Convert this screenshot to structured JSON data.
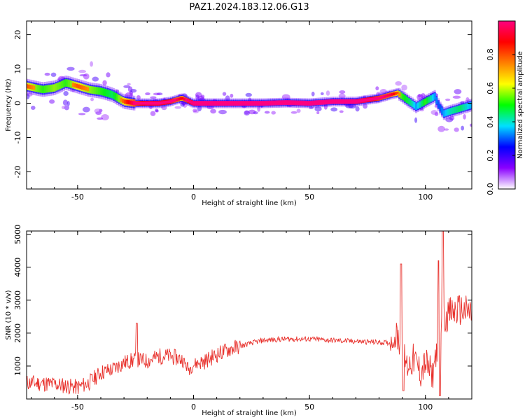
{
  "title": "PAZ1.2024.183.12.06.G13",
  "colors": {
    "snr_line": "#e8312c",
    "ridge_core": "#e03040",
    "frame": "#000000",
    "background": "#ffffff"
  },
  "chart_data": [
    {
      "type": "heatmap",
      "xlabel": "Height of straight line (km)",
      "ylabel": "Frequency (Hz)",
      "xlim": [
        -72,
        120
      ],
      "ylim": [
        -25,
        24
      ],
      "xticks": [
        -50,
        0,
        50,
        100
      ],
      "yticks": [
        -20,
        -10,
        0,
        10,
        20
      ],
      "xtick_labels": [
        "-50",
        "0",
        "50",
        "100"
      ],
      "ytick_labels": [
        "-20",
        "-10",
        "0",
        "10",
        "20"
      ],
      "ridge": {
        "x": [
          -72,
          -65,
          -60,
          -55,
          -50,
          -45,
          -40,
          -35,
          -30,
          -25,
          -20,
          -15,
          -10,
          -5,
          0,
          10,
          20,
          30,
          40,
          50,
          60,
          70,
          75,
          80,
          85,
          88,
          90,
          93,
          96,
          100,
          104,
          106,
          108,
          110,
          115,
          120
        ],
        "y": [
          5,
          4,
          4.5,
          6,
          5,
          4,
          3.5,
          2.5,
          0.5,
          0,
          0,
          0,
          0.5,
          1.5,
          0,
          0,
          0,
          0,
          0.2,
          0,
          0.5,
          0.5,
          1.0,
          1.5,
          2.5,
          3.0,
          2.0,
          0.5,
          -1.0,
          0.5,
          2.0,
          -1.0,
          -3.0,
          -2.5,
          -1.5,
          -0.5
        ],
        "amplitude": [
          0.55,
          0.45,
          0.5,
          0.45,
          0.55,
          0.5,
          0.45,
          0.4,
          0.55,
          0.7,
          0.8,
          0.8,
          0.75,
          0.6,
          0.85,
          0.9,
          0.95,
          0.95,
          0.9,
          0.9,
          0.9,
          0.85,
          0.8,
          0.7,
          0.65,
          0.55,
          0.45,
          0.4,
          0.3,
          0.45,
          0.3,
          0.25,
          0.3,
          0.35,
          0.4,
          0.3
        ]
      },
      "colorbar": {
        "label": "Normalized spectral amplitude",
        "range": [
          0,
          1
        ],
        "ticks": [
          0.0,
          0.2,
          0.4,
          0.6,
          0.8
        ],
        "tick_labels": [
          "0.0",
          "0.2",
          "0.4",
          "0.6",
          "0.8"
        ],
        "colormap": [
          "#ffffff",
          "#8a00ff",
          "#0000ff",
          "#00e0ff",
          "#00ff00",
          "#ffff00",
          "#ff8000",
          "#ff0000",
          "#ff0080"
        ]
      }
    },
    {
      "type": "line",
      "xlabel": "Height of straight line (km)",
      "ylabel": "SNR (10 * v/v)",
      "xlim": [
        -72,
        120
      ],
      "ylim": [
        0,
        5100
      ],
      "xticks": [
        -50,
        0,
        50,
        100
      ],
      "yticks": [
        1000,
        2000,
        3000,
        4000,
        5000
      ],
      "xtick_labels": [
        "-50",
        "0",
        "50",
        "100"
      ],
      "ytick_labels": [
        "1000",
        "2000",
        "3000",
        "4000",
        "5000"
      ],
      "series": [
        {
          "x": [
            -72,
            -60,
            -50,
            -45,
            -40,
            -35,
            -30,
            -25,
            -20,
            -15,
            -10,
            -5,
            -2,
            0,
            5,
            10,
            15,
            20,
            25,
            30,
            40,
            50,
            60,
            70,
            80,
            85,
            88,
            90,
            92,
            95,
            98,
            100,
            103,
            105,
            107,
            108,
            110,
            115,
            120
          ],
          "y": [
            500,
            450,
            350,
            500,
            800,
            900,
            1100,
            1200,
            1150,
            1300,
            1300,
            1200,
            900,
            1050,
            1150,
            1350,
            1500,
            1600,
            1700,
            1780,
            1820,
            1820,
            1780,
            1750,
            1720,
            1700,
            1900,
            1500,
            1000,
            1200,
            800,
            1100,
            700,
            1600,
            2600,
            2400,
            2600,
            2700,
            2600
          ]
        }
      ]
    }
  ]
}
